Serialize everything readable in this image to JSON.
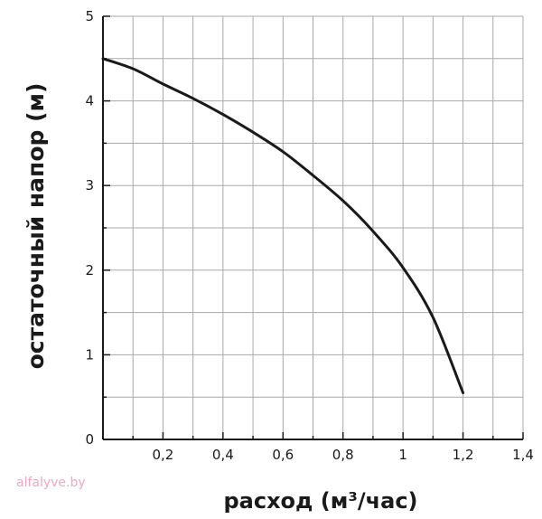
{
  "chart_data": {
    "type": "line",
    "xlabel": "расход (м³/час)",
    "ylabel": "остаточный напор (м)",
    "x_tick_labels": [
      "0,2",
      "0,4",
      "0,6",
      "0,8",
      "1",
      "1,2",
      "1,4"
    ],
    "y_tick_labels": [
      "0",
      "1",
      "2",
      "3",
      "4",
      "5"
    ],
    "xlim": [
      0,
      1.4
    ],
    "ylim": [
      0,
      5
    ],
    "grid": true,
    "series": [
      {
        "x": [
          0,
          0.1,
          0.2,
          0.3,
          0.4,
          0.5,
          0.6,
          0.7,
          0.8,
          0.9,
          1.0,
          1.1,
          1.2
        ],
        "y": [
          4.5,
          4.38,
          4.2,
          4.03,
          3.84,
          3.63,
          3.4,
          3.12,
          2.82,
          2.46,
          2.03,
          1.44,
          0.55
        ]
      }
    ],
    "line_color": "#1a1a1a"
  },
  "watermark": "alfalyve.by"
}
